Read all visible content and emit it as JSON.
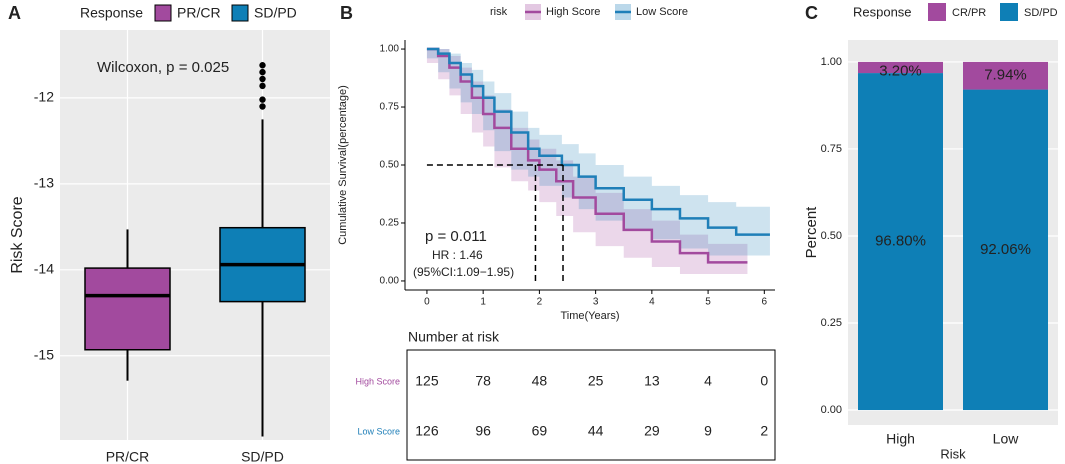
{
  "chart_data": [
    {
      "type": "box",
      "panel": "A",
      "legend_title": "Response",
      "categories": [
        "PR/CR",
        "SD/PD"
      ],
      "colors": [
        "#a24a9e",
        "#0e7fb6"
      ],
      "boxes": [
        {
          "min": -15.29,
          "q1": -14.93,
          "median": -14.3,
          "q3": -13.98,
          "max": -13.53,
          "outliers": []
        },
        {
          "min": -15.94,
          "q1": -14.37,
          "median": -13.94,
          "q3": -13.51,
          "max": -12.25,
          "outliers": [
            -11.62,
            -11.7,
            -11.78,
            -11.86,
            -12.02,
            -12.1
          ]
        }
      ],
      "annotation": "Wilcoxon, p = 0.025",
      "ylabel": "Risk Score",
      "ylim": [
        -15.98,
        -11.21
      ],
      "yticks": [
        -15,
        -14,
        -13,
        -12
      ],
      "grid": true
    },
    {
      "type": "km",
      "panel": "B",
      "legend_title": "risk",
      "xlabel": "Time(Years)",
      "ylabel": "Cumulative Survival(percentage)",
      "xlim": [
        -0.39,
        6.19
      ],
      "xticks": [
        0,
        1,
        2,
        3,
        4,
        5,
        6
      ],
      "ylim": [
        -0.039,
        1.039
      ],
      "yticks": [
        {
          "value": 0,
          "label": "0.00"
        },
        {
          "value": 0.25,
          "label": "0.25"
        },
        {
          "value": 0.5,
          "label": "0.50"
        },
        {
          "value": 0.75,
          "label": "0.75"
        },
        {
          "value": 1,
          "label": "1.00"
        }
      ],
      "series": [
        {
          "name": "High Score",
          "color": "#a24a9e",
          "x": [
            0,
            0.2,
            0.4,
            0.6,
            0.8,
            1.0,
            1.2,
            1.5,
            1.8,
            2.0,
            2.3,
            2.6,
            3.0,
            3.5,
            4.0,
            4.5,
            5.0,
            5.7
          ],
          "values": [
            1,
            0.97,
            0.92,
            0.86,
            0.79,
            0.72,
            0.66,
            0.57,
            0.52,
            0.48,
            0.43,
            0.36,
            0.29,
            0.22,
            0.17,
            0.12,
            0.08,
            0.08
          ],
          "lower": [
            1,
            0.94,
            0.87,
            0.8,
            0.72,
            0.64,
            0.58,
            0.49,
            0.43,
            0.39,
            0.34,
            0.28,
            0.21,
            0.15,
            0.1,
            0.06,
            0.03,
            0.03
          ],
          "upper": [
            1,
            1,
            0.97,
            0.92,
            0.86,
            0.8,
            0.74,
            0.66,
            0.61,
            0.57,
            0.52,
            0.45,
            0.38,
            0.31,
            0.26,
            0.2,
            0.16,
            0.16
          ]
        },
        {
          "name": "Low Score",
          "color": "#1f7fb8",
          "x": [
            0,
            0.2,
            0.4,
            0.6,
            0.8,
            1.0,
            1.2,
            1.5,
            1.8,
            2.0,
            2.4,
            2.7,
            3.0,
            3.5,
            4.0,
            4.5,
            5.0,
            5.5,
            6.1
          ],
          "values": [
            1,
            0.98,
            0.94,
            0.89,
            0.84,
            0.79,
            0.73,
            0.64,
            0.57,
            0.54,
            0.5,
            0.45,
            0.4,
            0.35,
            0.31,
            0.27,
            0.23,
            0.2,
            0.2
          ],
          "lower": [
            1,
            0.96,
            0.9,
            0.83,
            0.77,
            0.72,
            0.65,
            0.56,
            0.48,
            0.45,
            0.41,
            0.36,
            0.31,
            0.26,
            0.22,
            0.18,
            0.14,
            0.11,
            0.11
          ],
          "upper": [
            1,
            1,
            0.98,
            0.94,
            0.91,
            0.86,
            0.81,
            0.73,
            0.66,
            0.63,
            0.59,
            0.55,
            0.5,
            0.45,
            0.41,
            0.37,
            0.34,
            0.32,
            0.32
          ]
        }
      ],
      "median_level": 0.5,
      "medians": [
        1.93,
        2.42
      ],
      "annotations": [
        "p = 0.011",
        "HR : 1.46",
        "(95%CI:1.09−1.95)"
      ],
      "risk_table": {
        "title": "Number at risk",
        "rows": [
          {
            "name": "High Score",
            "values": [
              125,
              78,
              48,
              25,
              13,
              4,
              0
            ]
          },
          {
            "name": "Low Score",
            "values": [
              126,
              96,
              69,
              44,
              29,
              9,
              2
            ]
          }
        ]
      }
    },
    {
      "type": "stacked_bar",
      "panel": "C",
      "legend_title": "Response",
      "categories": [
        "High",
        "Low"
      ],
      "xlabel": "Risk",
      "ylabel": "Percent",
      "series": [
        {
          "name": "SD/PD",
          "color": "#0e7fb6",
          "values": [
            0.968,
            0.9206
          ],
          "value_labels": [
            "96.80%",
            "92.06%"
          ]
        },
        {
          "name": "CR/PR",
          "color": "#a24a9e",
          "values": [
            0.032,
            0.0794
          ],
          "value_labels": [
            "3.20%",
            "7.94%"
          ]
        }
      ],
      "ylim": [
        -0.043,
        1.063
      ],
      "yticks": [
        {
          "value": 0,
          "label": "0.00"
        },
        {
          "value": 0.25,
          "label": "0.25"
        },
        {
          "value": 0.5,
          "label": "0.50"
        },
        {
          "value": 0.75,
          "label": "0.75"
        },
        {
          "value": 1,
          "label": "1.00"
        }
      ],
      "grid": true
    }
  ]
}
